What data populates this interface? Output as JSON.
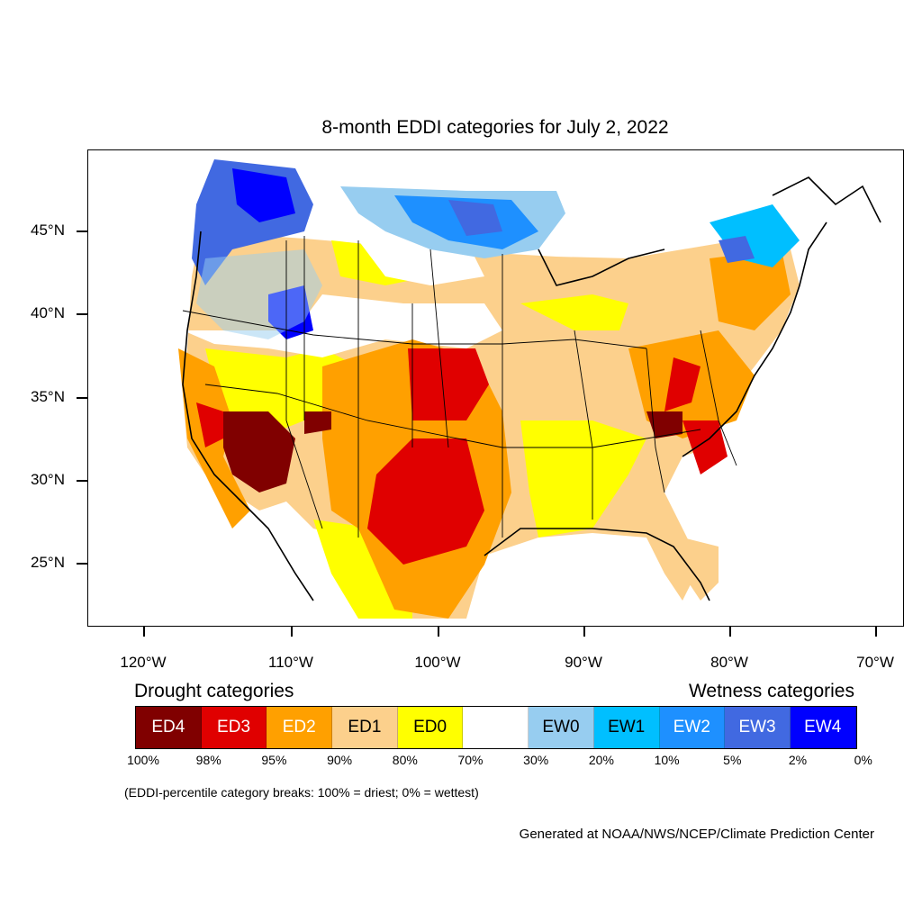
{
  "title": "8-month EDDI categories for July 2, 2022",
  "lat_ticks": [
    "45°N",
    "40°N",
    "35°N",
    "30°N",
    "25°N"
  ],
  "lon_ticks": [
    "120°W",
    "110°W",
    "100°W",
    "90°W",
    "80°W",
    "70°W"
  ],
  "legend": {
    "drought_title": "Drought categories",
    "wetness_title": "Wetness categories",
    "categories": [
      {
        "label": "ED4",
        "color": "#800000",
        "text_color": "#ffffff"
      },
      {
        "label": "ED3",
        "color": "#e00000",
        "text_color": "#ffffff"
      },
      {
        "label": "ED2",
        "color": "#ffa000",
        "text_color": "#ffffff"
      },
      {
        "label": "ED1",
        "color": "#fcd08c",
        "text_color": "#000000"
      },
      {
        "label": "ED0",
        "color": "#ffff00",
        "text_color": "#000000"
      },
      {
        "label": "",
        "color": "#ffffff",
        "text_color": "#000000"
      },
      {
        "label": "EW0",
        "color": "#97cdf0",
        "text_color": "#000000"
      },
      {
        "label": "EW1",
        "color": "#00bfff",
        "text_color": "#000000"
      },
      {
        "label": "EW2",
        "color": "#1e90ff",
        "text_color": "#ffffff"
      },
      {
        "label": "EW3",
        "color": "#4169e1",
        "text_color": "#ffffff"
      },
      {
        "label": "EW4",
        "color": "#0000ff",
        "text_color": "#ffffff"
      }
    ],
    "percentiles": [
      "100%",
      "98%",
      "95%",
      "90%",
      "80%",
      "70%",
      "30%",
      "20%",
      "10%",
      "5%",
      "2%",
      "0%"
    ]
  },
  "note": "(EDDI-percentile category breaks: 100% = driest; 0% = wettest)",
  "credit": "Generated at NOAA/NWS/NCEP/Climate Prediction Center",
  "map_regions": [
    {
      "name": "pacific-northwest-wet",
      "category": "EW3"
    },
    {
      "name": "northern-plains-wet",
      "category": "EW2"
    },
    {
      "name": "southwest-extreme-dry",
      "category": "ED4"
    },
    {
      "name": "southern-plains-severe-dry",
      "category": "ED3"
    },
    {
      "name": "southeast-dry",
      "category": "ED1"
    }
  ]
}
